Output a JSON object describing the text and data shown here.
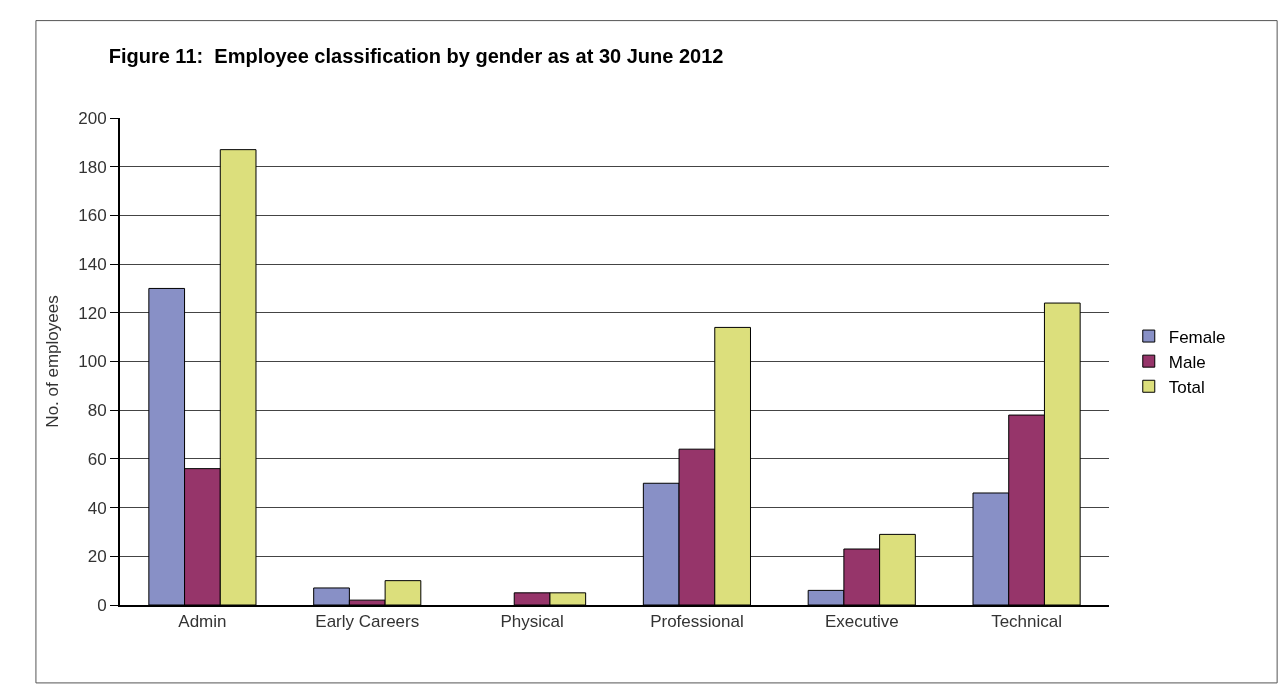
{
  "chart_data": {
    "type": "bar",
    "title": "Figure 11:  Employee classification by gender as at 30 June 2012",
    "ylabel": "No. of employees",
    "categories": [
      "Admin",
      "Early Careers",
      "Physical",
      "Professional",
      "Executive",
      "Technical"
    ],
    "series": [
      {
        "name": "Female",
        "color": "#8890c6",
        "values": [
          130,
          7,
          0,
          50,
          6,
          46
        ]
      },
      {
        "name": "Male",
        "color": "#96356a",
        "values": [
          56,
          2,
          5,
          64,
          23,
          78
        ]
      },
      {
        "name": "Total",
        "color": "#dcdf7c",
        "values": [
          187,
          10,
          5,
          114,
          29,
          124
        ]
      }
    ],
    "ylim": [
      0,
      200
    ],
    "yticks": [
      0,
      20,
      40,
      60,
      80,
      100,
      120,
      140,
      160,
      180,
      200
    ],
    "grid": "y",
    "legend": "right"
  }
}
